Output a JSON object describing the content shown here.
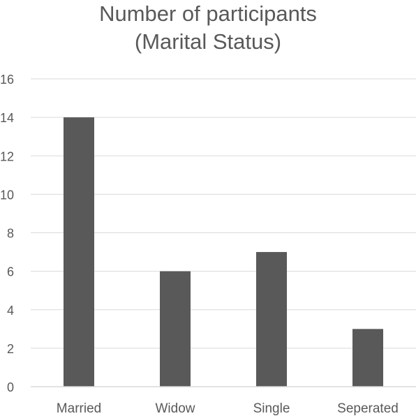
{
  "chart_data": {
    "type": "bar",
    "title": "Number of participants (Marital Status)",
    "title_lines": [
      "Number of participants",
      "(Marital Status)"
    ],
    "categories": [
      "Married",
      "Widow",
      "Single",
      "Seperated"
    ],
    "series": [
      {
        "values": [
          14,
          6,
          7,
          3
        ]
      }
    ],
    "xlabel": "",
    "ylabel": "",
    "ylim": [
      0,
      16
    ],
    "yticks": [
      "0",
      "2",
      "4",
      "6",
      "8",
      "10",
      "12",
      "14",
      "16"
    ],
    "grid": true,
    "legend": "none",
    "colors": {
      "bar": "#595959",
      "grid": "#d9d9d9",
      "text": "#595959"
    }
  }
}
